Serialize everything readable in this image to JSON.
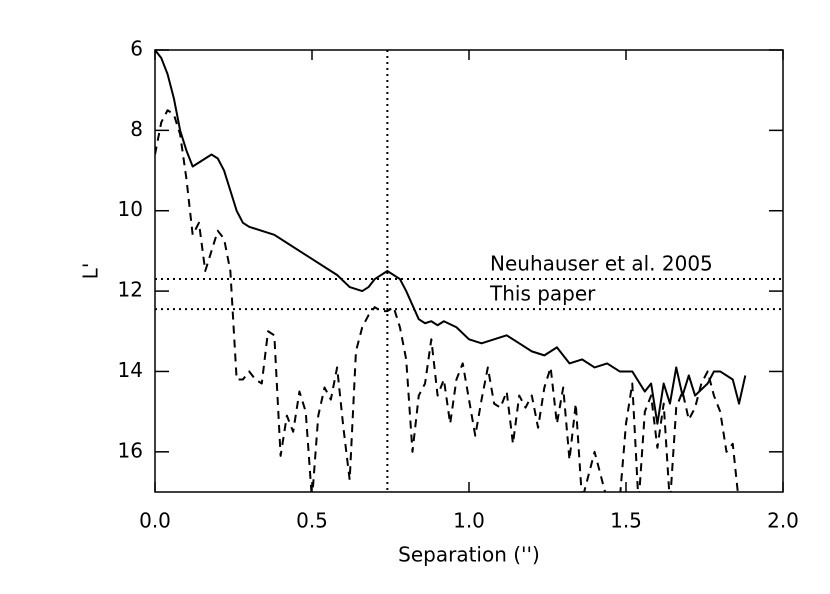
{
  "chart_data": {
    "type": "line",
    "xlabel": "Separation ('')",
    "ylabel": "L'",
    "xlim": [
      0.0,
      2.0
    ],
    "ylim": [
      17,
      6
    ],
    "xticks": [
      {
        "value": 0.0,
        "label": "0.0"
      },
      0.5,
      {
        "value": 1.0,
        "label": "1.0"
      },
      1.5,
      {
        "value": 2.0,
        "label": "2.0"
      }
    ],
    "yticks": [
      6,
      8,
      10,
      12,
      14,
      16
    ],
    "hlines": [
      {
        "value": 11.7,
        "label": "Neuhauser et al. 2005"
      },
      {
        "value": 12.45,
        "label": "This paper"
      }
    ],
    "vline": 0.74,
    "series": [
      {
        "color": "#000000",
        "dash": "solid",
        "x": [
          0.0,
          0.02,
          0.04,
          0.06,
          0.08,
          0.1,
          0.12,
          0.14,
          0.16,
          0.18,
          0.2,
          0.22,
          0.24,
          0.26,
          0.28,
          0.3,
          0.34,
          0.38,
          0.42,
          0.46,
          0.5,
          0.54,
          0.58,
          0.62,
          0.66,
          0.68,
          0.7,
          0.74,
          0.78,
          0.8,
          0.84,
          0.86,
          0.88,
          0.9,
          0.92,
          0.96,
          1.0,
          1.04,
          1.08,
          1.12,
          1.16,
          1.2,
          1.24,
          1.28,
          1.32,
          1.36,
          1.4,
          1.44,
          1.48,
          1.52,
          1.56,
          1.58,
          1.6,
          1.62,
          1.64,
          1.66,
          1.68,
          1.7,
          1.72,
          1.76,
          1.78,
          1.8,
          1.84,
          1.86,
          1.88
        ],
        "values": [
          6.0,
          6.2,
          6.6,
          7.2,
          8.0,
          8.5,
          8.9,
          8.8,
          8.7,
          8.6,
          8.7,
          9.0,
          9.5,
          10.0,
          10.3,
          10.4,
          10.5,
          10.6,
          10.8,
          11.0,
          11.2,
          11.4,
          11.6,
          11.9,
          12.0,
          11.9,
          11.7,
          11.5,
          11.7,
          12.0,
          12.7,
          12.8,
          12.75,
          12.85,
          12.75,
          12.9,
          13.2,
          13.3,
          13.2,
          13.1,
          13.3,
          13.5,
          13.6,
          13.4,
          13.8,
          13.7,
          13.9,
          13.8,
          14.0,
          14.0,
          14.5,
          14.3,
          15.3,
          14.3,
          14.8,
          13.9,
          14.6,
          14.1,
          14.6,
          14.3,
          14.0,
          14.0,
          14.2,
          14.8,
          14.1
        ]
      },
      {
        "color": "#000000",
        "dash": "dashed",
        "x": [
          0.0,
          0.02,
          0.04,
          0.06,
          0.08,
          0.1,
          0.12,
          0.14,
          0.16,
          0.18,
          0.2,
          0.22,
          0.24,
          0.26,
          0.28,
          0.3,
          0.32,
          0.34,
          0.36,
          0.38,
          0.4,
          0.42,
          0.44,
          0.46,
          0.48,
          0.5,
          0.52,
          0.54,
          0.56,
          0.58,
          0.6,
          0.62,
          0.64,
          0.66,
          0.68,
          0.7,
          0.72,
          0.74,
          0.76,
          0.78,
          0.8,
          0.82,
          0.84,
          0.86,
          0.88,
          0.9,
          0.92,
          0.94,
          0.96,
          0.98,
          1.0,
          1.02,
          1.04,
          1.06,
          1.08,
          1.1,
          1.12,
          1.14,
          1.16,
          1.18,
          1.2,
          1.22,
          1.24,
          1.26,
          1.28,
          1.3,
          1.32,
          1.34,
          1.36,
          1.4,
          1.44,
          1.48,
          1.5,
          1.52,
          1.54,
          1.56,
          1.58,
          1.6,
          1.62,
          1.64,
          1.66,
          1.68,
          1.7,
          1.72,
          1.74,
          1.76,
          1.78,
          1.8,
          1.82,
          1.84,
          1.86
        ],
        "values": [
          8.6,
          7.8,
          7.5,
          7.6,
          8.1,
          9.2,
          10.6,
          10.3,
          11.5,
          11.0,
          10.5,
          10.7,
          11.5,
          14.2,
          14.2,
          14.0,
          14.2,
          14.3,
          13.0,
          13.1,
          16.1,
          15.1,
          15.5,
          14.5,
          15.0,
          17.2,
          15.1,
          14.4,
          14.7,
          13.9,
          15.4,
          16.7,
          13.5,
          12.9,
          12.6,
          12.4,
          12.5,
          12.5,
          12.4,
          12.9,
          13.7,
          16.0,
          14.6,
          14.3,
          13.2,
          14.6,
          14.2,
          15.3,
          14.2,
          13.8,
          14.7,
          15.6,
          14.7,
          13.9,
          14.8,
          14.9,
          14.5,
          15.8,
          14.6,
          14.9,
          14.6,
          15.4,
          14.4,
          13.9,
          15.3,
          14.4,
          16.2,
          14.8,
          17.2,
          16.0,
          17.2,
          17.2,
          15.3,
          14.3,
          17.3,
          15.0,
          14.6,
          15.9,
          14.8,
          17.3,
          14.9,
          14.5,
          15.2,
          14.9,
          14.3,
          14.0,
          14.6,
          15.0,
          16.0,
          15.8,
          17.3
        ]
      }
    ]
  }
}
